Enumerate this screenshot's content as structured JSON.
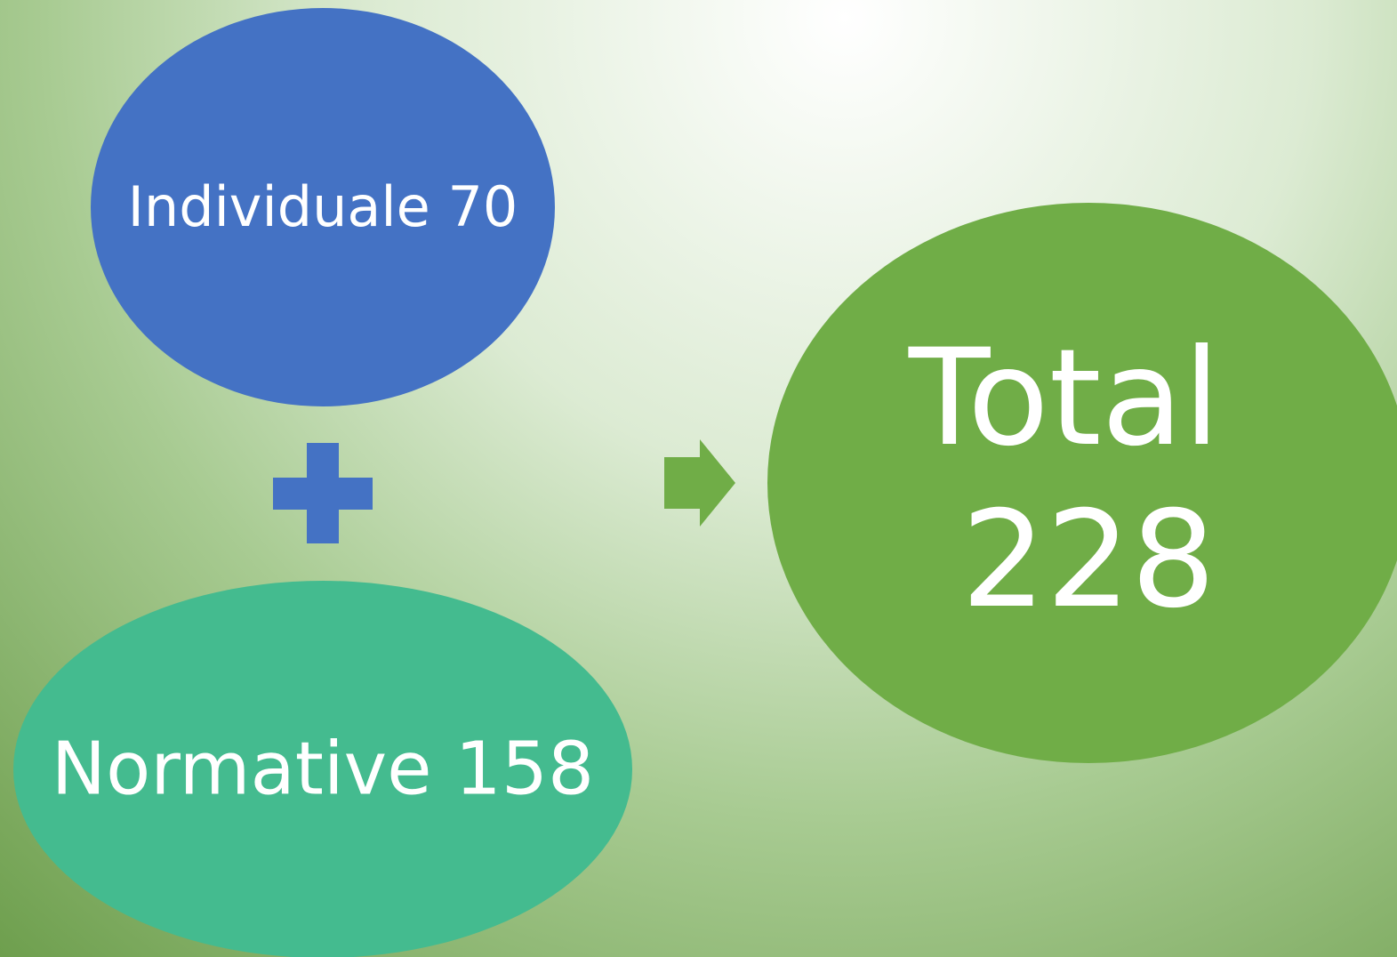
{
  "nodes": [
    {
      "label": "Individuale 70"
    },
    {
      "label": "Normative 158"
    },
    {
      "lines": [
        "Total",
        "228"
      ]
    }
  ]
}
